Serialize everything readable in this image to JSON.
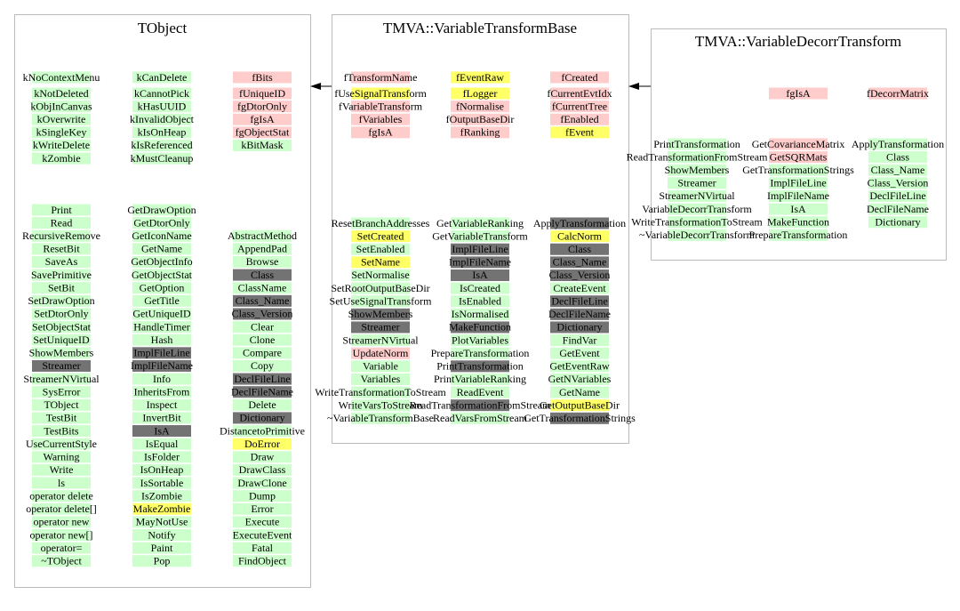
{
  "nodes": [
    {
      "title": "TObject",
      "members": [
        [
          {
            "label": "kNoContextMenu",
            "color": "#ccffcc"
          },
          {
            "label": "kNotDeleted",
            "color": "#ccffcc"
          },
          {
            "label": "kObjInCanvas",
            "color": "#ccffcc"
          },
          {
            "label": "kOverwrite",
            "color": "#ccffcc"
          },
          {
            "label": "kSingleKey",
            "color": "#ccffcc"
          },
          {
            "label": "kWriteDelete",
            "color": "#ccffcc"
          },
          {
            "label": "kZombie",
            "color": "#ccffcc"
          }
        ],
        [
          {
            "label": "kCanDelete",
            "color": "#ccffcc"
          },
          {
            "label": "kCannotPick",
            "color": "#ccffcc"
          },
          {
            "label": "kHasUUID",
            "color": "#ccffcc"
          },
          {
            "label": "kInvalidObject",
            "color": "#ccffcc"
          },
          {
            "label": "kIsOnHeap",
            "color": "#ccffcc"
          },
          {
            "label": "kIsReferenced",
            "color": "#ccffcc"
          },
          {
            "label": "kMustCleanup",
            "color": "#ccffcc"
          }
        ],
        [
          {
            "label": "fBits",
            "color": "#ffcccc"
          },
          {
            "label": "fUniqueID",
            "color": "#ffcccc"
          },
          {
            "label": "fgDtorOnly",
            "color": "#ffcccc"
          },
          {
            "label": "fgIsA",
            "color": "#ffcccc"
          },
          {
            "label": "fgObjectStat",
            "color": "#ffcccc"
          },
          {
            "label": "kBitMask",
            "color": "#ccffcc"
          }
        ]
      ],
      "methods": [
        [
          {
            "label": "Print",
            "color": "#ccffcc"
          },
          {
            "label": "Read",
            "color": "#ccffcc"
          },
          {
            "label": "RecursiveRemove",
            "color": "#ccffcc"
          },
          {
            "label": "ResetBit",
            "color": "#ccffcc"
          },
          {
            "label": "SaveAs",
            "color": "#ccffcc"
          },
          {
            "label": "SavePrimitive",
            "color": "#ccffcc"
          },
          {
            "label": "SetBit",
            "color": "#ccffcc"
          },
          {
            "label": "SetDrawOption",
            "color": "#ccffcc"
          },
          {
            "label": "SetDtorOnly",
            "color": "#ccffcc"
          },
          {
            "label": "SetObjectStat",
            "color": "#ccffcc"
          },
          {
            "label": "SetUniqueID",
            "color": "#ccffcc"
          },
          {
            "label": "ShowMembers",
            "color": "#ccffcc"
          },
          {
            "label": "Streamer",
            "color": "#737373"
          },
          {
            "label": "StreamerNVirtual",
            "color": "#ccffcc"
          },
          {
            "label": "SysError",
            "color": "#ccffcc"
          },
          {
            "label": "TObject",
            "color": "#ccffcc"
          },
          {
            "label": "TestBit",
            "color": "#ccffcc"
          },
          {
            "label": "TestBits",
            "color": "#ccffcc"
          },
          {
            "label": "UseCurrentStyle",
            "color": "#ccffcc"
          },
          {
            "label": "Warning",
            "color": "#ccffcc"
          },
          {
            "label": "Write",
            "color": "#ccffcc"
          },
          {
            "label": "ls",
            "color": "#ccffcc"
          },
          {
            "label": "operator delete",
            "color": "#ccffcc"
          },
          {
            "label": "operator delete[]",
            "color": "#ccffcc"
          },
          {
            "label": "operator new",
            "color": "#ccffcc"
          },
          {
            "label": "operator new[]",
            "color": "#ccffcc"
          },
          {
            "label": "operator=",
            "color": "#ccffcc"
          },
          {
            "label": "~TObject",
            "color": "#ccffcc"
          }
        ],
        [
          {
            "label": "GetDrawOption",
            "color": "#ccffcc"
          },
          {
            "label": "GetDtorOnly",
            "color": "#ccffcc"
          },
          {
            "label": "GetIconName",
            "color": "#ccffcc"
          },
          {
            "label": "GetName",
            "color": "#ccffcc"
          },
          {
            "label": "GetObjectInfo",
            "color": "#ccffcc"
          },
          {
            "label": "GetObjectStat",
            "color": "#ccffcc"
          },
          {
            "label": "GetOption",
            "color": "#ccffcc"
          },
          {
            "label": "GetTitle",
            "color": "#ccffcc"
          },
          {
            "label": "GetUniqueID",
            "color": "#ccffcc"
          },
          {
            "label": "HandleTimer",
            "color": "#ccffcc"
          },
          {
            "label": "Hash",
            "color": "#ccffcc"
          },
          {
            "label": "ImplFileLine",
            "color": "#737373"
          },
          {
            "label": "ImplFileName",
            "color": "#737373"
          },
          {
            "label": "Info",
            "color": "#ccffcc"
          },
          {
            "label": "InheritsFrom",
            "color": "#ccffcc"
          },
          {
            "label": "Inspect",
            "color": "#ccffcc"
          },
          {
            "label": "InvertBit",
            "color": "#ccffcc"
          },
          {
            "label": "IsA",
            "color": "#737373"
          },
          {
            "label": "IsEqual",
            "color": "#ccffcc"
          },
          {
            "label": "IsFolder",
            "color": "#ccffcc"
          },
          {
            "label": "IsOnHeap",
            "color": "#ccffcc"
          },
          {
            "label": "IsSortable",
            "color": "#ccffcc"
          },
          {
            "label": "IsZombie",
            "color": "#ccffcc"
          },
          {
            "label": "MakeZombie",
            "color": "#ffff66"
          },
          {
            "label": "MayNotUse",
            "color": "#ccffcc"
          },
          {
            "label": "Notify",
            "color": "#ccffcc"
          },
          {
            "label": "Paint",
            "color": "#ccffcc"
          },
          {
            "label": "Pop",
            "color": "#ccffcc"
          }
        ],
        [
          {
            "label": "AbstractMethod",
            "color": "#ccffcc"
          },
          {
            "label": "AppendPad",
            "color": "#ccffcc"
          },
          {
            "label": "Browse",
            "color": "#ccffcc"
          },
          {
            "label": "Class",
            "color": "#737373"
          },
          {
            "label": "ClassName",
            "color": "#ccffcc"
          },
          {
            "label": "Class_Name",
            "color": "#737373"
          },
          {
            "label": "Class_Version",
            "color": "#737373"
          },
          {
            "label": "Clear",
            "color": "#ccffcc"
          },
          {
            "label": "Clone",
            "color": "#ccffcc"
          },
          {
            "label": "Compare",
            "color": "#ccffcc"
          },
          {
            "label": "Copy",
            "color": "#ccffcc"
          },
          {
            "label": "DeclFileLine",
            "color": "#737373"
          },
          {
            "label": "DeclFileName",
            "color": "#737373"
          },
          {
            "label": "Delete",
            "color": "#ccffcc"
          },
          {
            "label": "Dictionary",
            "color": "#737373"
          },
          {
            "label": "DistancetoPrimitive",
            "color": "#ccffcc"
          },
          {
            "label": "DoError",
            "color": "#ffff66"
          },
          {
            "label": "Draw",
            "color": "#ccffcc"
          },
          {
            "label": "DrawClass",
            "color": "#ccffcc"
          },
          {
            "label": "DrawClone",
            "color": "#ccffcc"
          },
          {
            "label": "Dump",
            "color": "#ccffcc"
          },
          {
            "label": "Error",
            "color": "#ccffcc"
          },
          {
            "label": "Execute",
            "color": "#ccffcc"
          },
          {
            "label": "ExecuteEvent",
            "color": "#ccffcc"
          },
          {
            "label": "Fatal",
            "color": "#ccffcc"
          },
          {
            "label": "FindObject",
            "color": "#ccffcc"
          }
        ]
      ]
    },
    {
      "title": "TMVA::VariableTransformBase",
      "members": [
        [
          {
            "label": "fTransformName",
            "color": "#ffcccc"
          },
          {
            "label": "fUseSignalTransform",
            "color": "#ffff66"
          },
          {
            "label": "fVariableTransform",
            "color": "#ffcccc"
          },
          {
            "label": "fVariables",
            "color": "#ffcccc"
          },
          {
            "label": "fgIsA",
            "color": "#ffcccc"
          }
        ],
        [
          {
            "label": "fEventRaw",
            "color": "#ffff66"
          },
          {
            "label": "fLogger",
            "color": "#ffff66"
          },
          {
            "label": "fNormalise",
            "color": "#ffcccc"
          },
          {
            "label": "fOutputBaseDir",
            "color": "#ffcccc"
          },
          {
            "label": "fRanking",
            "color": "#ffcccc"
          }
        ],
        [
          {
            "label": "fCreated",
            "color": "#ffcccc"
          },
          {
            "label": "fCurrentEvtIdx",
            "color": "#ffcccc"
          },
          {
            "label": "fCurrentTree",
            "color": "#ffcccc"
          },
          {
            "label": "fEnabled",
            "color": "#ffcccc"
          },
          {
            "label": "fEvent",
            "color": "#ffff66"
          }
        ]
      ],
      "methods": [
        [
          {
            "label": "ResetBranchAddresses",
            "color": "#ccffcc"
          },
          {
            "label": "SetCreated",
            "color": "#ffff66"
          },
          {
            "label": "SetEnabled",
            "color": "#ccffcc"
          },
          {
            "label": "SetName",
            "color": "#ffff66"
          },
          {
            "label": "SetNormalise",
            "color": "#ccffcc"
          },
          {
            "label": "SetRootOutputBaseDir",
            "color": "#ccffcc"
          },
          {
            "label": "SetUseSignalTransform",
            "color": "#ccffcc"
          },
          {
            "label": "ShowMembers",
            "color": "#737373"
          },
          {
            "label": "Streamer",
            "color": "#737373"
          },
          {
            "label": "StreamerNVirtual",
            "color": "#ccffcc"
          },
          {
            "label": "UpdateNorm",
            "color": "#ffcccc"
          },
          {
            "label": "Variable",
            "color": "#ccffcc"
          },
          {
            "label": "Variables",
            "color": "#ccffcc"
          },
          {
            "label": "WriteTransformationToStream",
            "color": "#ccffcc"
          },
          {
            "label": "WriteVarsToStream",
            "color": "#ccffcc"
          },
          {
            "label": "~VariableTransformBase",
            "color": "#ccffcc"
          }
        ],
        [
          {
            "label": "GetVariableRanking",
            "color": "#ccffcc"
          },
          {
            "label": "GetVariableTransform",
            "color": "#ccffcc"
          },
          {
            "label": "ImplFileLine",
            "color": "#737373"
          },
          {
            "label": "ImplFileName",
            "color": "#737373"
          },
          {
            "label": "IsA",
            "color": "#737373"
          },
          {
            "label": "IsCreated",
            "color": "#ccffcc"
          },
          {
            "label": "IsEnabled",
            "color": "#ccffcc"
          },
          {
            "label": "IsNormalised",
            "color": "#ccffcc"
          },
          {
            "label": "MakeFunction",
            "color": "#737373"
          },
          {
            "label": "PlotVariables",
            "color": "#ccffcc"
          },
          {
            "label": "PrepareTransformation",
            "color": "#ccffcc"
          },
          {
            "label": "PrintTransformation",
            "color": "#737373"
          },
          {
            "label": "PrintVariableRanking",
            "color": "#ccffcc"
          },
          {
            "label": "ReadEvent",
            "color": "#ccffcc"
          },
          {
            "label": "ReadTransformationFromStream",
            "color": "#737373"
          },
          {
            "label": "ReadVarsFromStream",
            "color": "#ccffcc"
          }
        ],
        [
          {
            "label": "ApplyTransformation",
            "color": "#737373"
          },
          {
            "label": "CalcNorm",
            "color": "#ffff66"
          },
          {
            "label": "Class",
            "color": "#737373"
          },
          {
            "label": "Class_Name",
            "color": "#737373"
          },
          {
            "label": "Class_Version",
            "color": "#737373"
          },
          {
            "label": "CreateEvent",
            "color": "#ccffcc"
          },
          {
            "label": "DeclFileLine",
            "color": "#737373"
          },
          {
            "label": "DeclFileName",
            "color": "#737373"
          },
          {
            "label": "Dictionary",
            "color": "#737373"
          },
          {
            "label": "FindVar",
            "color": "#ccffcc"
          },
          {
            "label": "GetEvent",
            "color": "#ccffcc"
          },
          {
            "label": "GetEventRaw",
            "color": "#ccffcc"
          },
          {
            "label": "GetNVariables",
            "color": "#ccffcc"
          },
          {
            "label": "GetName",
            "color": "#ccffcc"
          },
          {
            "label": "GetOutputBaseDir",
            "color": "#ffff66"
          },
          {
            "label": "GetTransformationStrings",
            "color": "#737373"
          }
        ]
      ]
    },
    {
      "title": "TMVA::VariableDecorrTransform",
      "members": [
        [],
        [
          {
            "label": "fgIsA",
            "color": "#ffcccc"
          }
        ],
        [
          {
            "label": "fDecorrMatrix",
            "color": "#ffcccc"
          }
        ]
      ],
      "methods": [
        [
          {
            "label": "PrintTransformation",
            "color": "#ccffcc"
          },
          {
            "label": "ReadTransformationFromStream",
            "color": "#ccffcc"
          },
          {
            "label": "ShowMembers",
            "color": "#ccffcc"
          },
          {
            "label": "Streamer",
            "color": "#ccffcc"
          },
          {
            "label": "StreamerNVirtual",
            "color": "#ccffcc"
          },
          {
            "label": "VariableDecorrTransform",
            "color": "#ccffcc"
          },
          {
            "label": "WriteTransformationToStream",
            "color": "#ccffcc"
          },
          {
            "label": "~VariableDecorrTransform",
            "color": "#ccffcc"
          }
        ],
        [
          {
            "label": "GetCovarianceMatrix",
            "color": "#ffcccc"
          },
          {
            "label": "GetSQRMats",
            "color": "#ffcccc"
          },
          {
            "label": "GetTransformationStrings",
            "color": "#ccffcc"
          },
          {
            "label": "ImplFileLine",
            "color": "#ccffcc"
          },
          {
            "label": "ImplFileName",
            "color": "#ccffcc"
          },
          {
            "label": "IsA",
            "color": "#ccffcc"
          },
          {
            "label": "MakeFunction",
            "color": "#ccffcc"
          },
          {
            "label": "PrepareTransformation",
            "color": "#ccffcc"
          }
        ],
        [
          {
            "label": "ApplyTransformation",
            "color": "#ccffcc"
          },
          {
            "label": "Class",
            "color": "#ccffcc"
          },
          {
            "label": "Class_Name",
            "color": "#ccffcc"
          },
          {
            "label": "Class_Version",
            "color": "#ccffcc"
          },
          {
            "label": "DeclFileLine",
            "color": "#ccffcc"
          },
          {
            "label": "DeclFileName",
            "color": "#ccffcc"
          },
          {
            "label": "Dictionary",
            "color": "#ccffcc"
          }
        ]
      ]
    }
  ]
}
